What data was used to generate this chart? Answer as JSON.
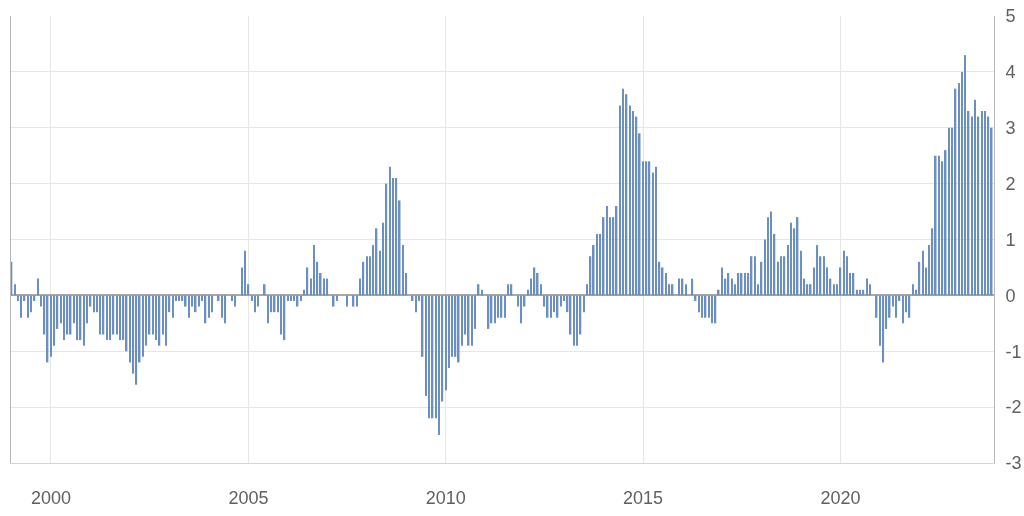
{
  "chart_data": {
    "type": "bar",
    "x": [
      "1999-01",
      "1999-02",
      "1999-03",
      "1999-04",
      "1999-05",
      "1999-06",
      "1999-07",
      "1999-08",
      "1999-09",
      "1999-10",
      "1999-11",
      "1999-12",
      "2000-01",
      "2000-02",
      "2000-03",
      "2000-04",
      "2000-05",
      "2000-06",
      "2000-07",
      "2000-08",
      "2000-09",
      "2000-10",
      "2000-11",
      "2000-12",
      "2001-01",
      "2001-02",
      "2001-03",
      "2001-04",
      "2001-05",
      "2001-06",
      "2001-07",
      "2001-08",
      "2001-09",
      "2001-10",
      "2001-11",
      "2001-12",
      "2002-01",
      "2002-02",
      "2002-03",
      "2002-04",
      "2002-05",
      "2002-06",
      "2002-07",
      "2002-08",
      "2002-09",
      "2002-10",
      "2002-11",
      "2002-12",
      "2003-01",
      "2003-02",
      "2003-03",
      "2003-04",
      "2003-05",
      "2003-06",
      "2003-07",
      "2003-08",
      "2003-09",
      "2003-10",
      "2003-11",
      "2003-12",
      "2004-01",
      "2004-02",
      "2004-03",
      "2004-04",
      "2004-05",
      "2004-06",
      "2004-07",
      "2004-08",
      "2004-09",
      "2004-10",
      "2004-11",
      "2004-12",
      "2005-01",
      "2005-02",
      "2005-03",
      "2005-04",
      "2005-05",
      "2005-06",
      "2005-07",
      "2005-08",
      "2005-09",
      "2005-10",
      "2005-11",
      "2005-12",
      "2006-01",
      "2006-02",
      "2006-03",
      "2006-04",
      "2006-05",
      "2006-06",
      "2006-07",
      "2006-08",
      "2006-09",
      "2006-10",
      "2006-11",
      "2006-12",
      "2007-01",
      "2007-02",
      "2007-03",
      "2007-04",
      "2007-05",
      "2007-06",
      "2007-07",
      "2007-08",
      "2007-09",
      "2007-10",
      "2007-11",
      "2007-12",
      "2008-01",
      "2008-02",
      "2008-03",
      "2008-04",
      "2008-05",
      "2008-06",
      "2008-07",
      "2008-08",
      "2008-09",
      "2008-10",
      "2008-11",
      "2008-12",
      "2009-01",
      "2009-02",
      "2009-03",
      "2009-04",
      "2009-05",
      "2009-06",
      "2009-07",
      "2009-08",
      "2009-09",
      "2009-10",
      "2009-11",
      "2009-12",
      "2010-01",
      "2010-02",
      "2010-03",
      "2010-04",
      "2010-05",
      "2010-06",
      "2010-07",
      "2010-08",
      "2010-09",
      "2010-10",
      "2010-11",
      "2010-12",
      "2011-01",
      "2011-02",
      "2011-03",
      "2011-04",
      "2011-05",
      "2011-06",
      "2011-07",
      "2011-08",
      "2011-09",
      "2011-10",
      "2011-11",
      "2011-12",
      "2012-01",
      "2012-02",
      "2012-03",
      "2012-04",
      "2012-05",
      "2012-06",
      "2012-07",
      "2012-08",
      "2012-09",
      "2012-10",
      "2012-11",
      "2012-12",
      "2013-01",
      "2013-02",
      "2013-03",
      "2013-04",
      "2013-05",
      "2013-06",
      "2013-07",
      "2013-08",
      "2013-09",
      "2013-10",
      "2013-11",
      "2013-12",
      "2014-01",
      "2014-02",
      "2014-03",
      "2014-04",
      "2014-05",
      "2014-06",
      "2014-07",
      "2014-08",
      "2014-09",
      "2014-10",
      "2014-11",
      "2014-12",
      "2015-01",
      "2015-02",
      "2015-03",
      "2015-04",
      "2015-05",
      "2015-06",
      "2015-07",
      "2015-08",
      "2015-09",
      "2015-10",
      "2015-11",
      "2015-12",
      "2016-01",
      "2016-02",
      "2016-03",
      "2016-04",
      "2016-05",
      "2016-06",
      "2016-07",
      "2016-08",
      "2016-09",
      "2016-10",
      "2016-11",
      "2016-12",
      "2017-01",
      "2017-02",
      "2017-03",
      "2017-04",
      "2017-05",
      "2017-06",
      "2017-07",
      "2017-08",
      "2017-09",
      "2017-10",
      "2017-11",
      "2017-12",
      "2018-01",
      "2018-02",
      "2018-03",
      "2018-04",
      "2018-05",
      "2018-06",
      "2018-07",
      "2018-08",
      "2018-09",
      "2018-10",
      "2018-11",
      "2018-12",
      "2019-01",
      "2019-02",
      "2019-03",
      "2019-04",
      "2019-05",
      "2019-06",
      "2019-07",
      "2019-08",
      "2019-09",
      "2019-10",
      "2019-11",
      "2019-12",
      "2020-01",
      "2020-02",
      "2020-03",
      "2020-04",
      "2020-05",
      "2020-06",
      "2020-07",
      "2020-08",
      "2020-09",
      "2020-10",
      "2020-11",
      "2020-12",
      "2021-01",
      "2021-02",
      "2021-03",
      "2021-04",
      "2021-05",
      "2021-06",
      "2021-07",
      "2021-08",
      "2021-09",
      "2021-10",
      "2021-11",
      "2021-12",
      "2022-01",
      "2022-02",
      "2022-03",
      "2022-04",
      "2022-05",
      "2022-06",
      "2022-07",
      "2022-08",
      "2022-09",
      "2022-10",
      "2022-11",
      "2022-12",
      "2023-01",
      "2023-02",
      "2023-03",
      "2023-04",
      "2023-05",
      "2023-06",
      "2023-07",
      "2023-08",
      "2023-09",
      "2023-10",
      "2023-11"
    ],
    "values": [
      0.6,
      0.2,
      -0.1,
      -0.4,
      -0.1,
      -0.4,
      -0.3,
      -0.1,
      0.3,
      -0.2,
      -0.7,
      -1.2,
      -1.1,
      -0.9,
      -0.6,
      -0.5,
      -0.8,
      -0.7,
      -0.7,
      -0.5,
      -0.8,
      -0.8,
      -0.9,
      -0.5,
      -0.2,
      -0.3,
      -0.3,
      -0.7,
      -0.7,
      -0.8,
      -0.8,
      -0.7,
      -0.7,
      -0.8,
      -0.8,
      -1.0,
      -1.2,
      -1.4,
      -1.6,
      -1.2,
      -1.1,
      -0.9,
      -0.7,
      -0.7,
      -0.8,
      -0.9,
      -0.7,
      -0.9,
      -0.3,
      -0.4,
      -0.1,
      -0.1,
      -0.1,
      -0.2,
      -0.4,
      -0.2,
      -0.3,
      -0.2,
      -0.1,
      -0.5,
      -0.4,
      -0.3,
      0,
      -0.1,
      -0.4,
      -0.5,
      0,
      -0.1,
      -0.2,
      0,
      0.5,
      0.8,
      0.2,
      -0.1,
      -0.3,
      -0.2,
      0,
      0.2,
      -0.5,
      -0.3,
      -0.3,
      -0.3,
      -0.7,
      -0.8,
      -0.1,
      -0.1,
      -0.1,
      -0.2,
      -0.1,
      0.1,
      0.5,
      0.3,
      0.9,
      0.6,
      0.4,
      0.3,
      0.3,
      0,
      -0.2,
      -0.1,
      0,
      0,
      -0.2,
      0,
      -0.2,
      -0.2,
      0.3,
      0.6,
      0.7,
      0.7,
      0.9,
      1.2,
      0.8,
      1.3,
      2.0,
      2.3,
      2.1,
      2.1,
      1.7,
      0.9,
      0.4,
      0,
      -0.1,
      -0.3,
      -0.1,
      -1.1,
      -1.8,
      -2.2,
      -2.2,
      -2.2,
      -2.5,
      -1.9,
      -1.7,
      -1.3,
      -1.1,
      -1.1,
      -1.2,
      -0.9,
      -0.7,
      -0.9,
      -0.9,
      -0.6,
      0.2,
      0.1,
      0,
      -0.6,
      -0.5,
      -0.5,
      -0.4,
      -0.4,
      -0.4,
      0.2,
      0.2,
      0,
      -0.2,
      -0.5,
      -0.2,
      0.1,
      0.3,
      0.5,
      0.4,
      0.2,
      -0.2,
      -0.4,
      -0.4,
      -0.3,
      -0.4,
      -0.2,
      -0.1,
      -0.3,
      -0.7,
      -0.9,
      -0.9,
      -0.7,
      -0.3,
      0.2,
      0.7,
      0.9,
      1.1,
      1.1,
      1.4,
      1.6,
      1.4,
      1.4,
      1.6,
      3.4,
      3.7,
      3.6,
      3.4,
      3.3,
      3.2,
      2.9,
      2.4,
      2.4,
      2.4,
      2.2,
      2.3,
      0.6,
      0.5,
      0.4,
      0.2,
      0.2,
      0,
      0.3,
      0.3,
      0.2,
      0,
      0.3,
      -0.1,
      -0.3,
      -0.4,
      -0.4,
      -0.4,
      -0.5,
      -0.5,
      0.1,
      0.5,
      0.3,
      0.4,
      0.3,
      0.2,
      0.4,
      0.4,
      0.4,
      0.4,
      0.7,
      0.7,
      0.2,
      0.6,
      1.0,
      1.4,
      1.5,
      1.1,
      0.6,
      0.7,
      0.7,
      0.9,
      1.3,
      1.2,
      1.4,
      0.8,
      0.3,
      0.2,
      0.2,
      0.5,
      0.9,
      0.7,
      0.7,
      0.5,
      0.3,
      0.2,
      0.2,
      0.5,
      0.8,
      0.7,
      0.4,
      0.4,
      0.1,
      0.1,
      0.1,
      0.3,
      0.2,
      0,
      -0.4,
      -0.9,
      -1.2,
      -0.6,
      -0.4,
      -0.2,
      -0.4,
      -0.1,
      -0.5,
      -0.3,
      -0.4,
      0.2,
      0.1,
      0.6,
      0.8,
      0.5,
      0.9,
      1.2,
      2.5,
      2.5,
      2.4,
      2.6,
      3.0,
      3.0,
      3.7,
      3.8,
      4.0,
      4.3,
      3.3,
      3.2,
      3.5,
      3.2,
      3.3,
      3.3,
      3.2,
      3.0
    ],
    "color": "#6a8fc0",
    "xlim": [
      "1998-12-27",
      "2023-11-22"
    ],
    "xticks": [
      {
        "value": "2000",
        "label": "2000"
      },
      {
        "value": "2005",
        "label": "2005"
      },
      {
        "value": "2010",
        "label": "2010"
      },
      {
        "value": "2015",
        "label": "2015"
      },
      {
        "value": "2020",
        "label": "2020"
      }
    ],
    "ylim": [
      -3,
      5
    ],
    "yticks": [
      5,
      4,
      3,
      2,
      1,
      0,
      -1,
      -2,
      -3
    ],
    "grid": true
  }
}
